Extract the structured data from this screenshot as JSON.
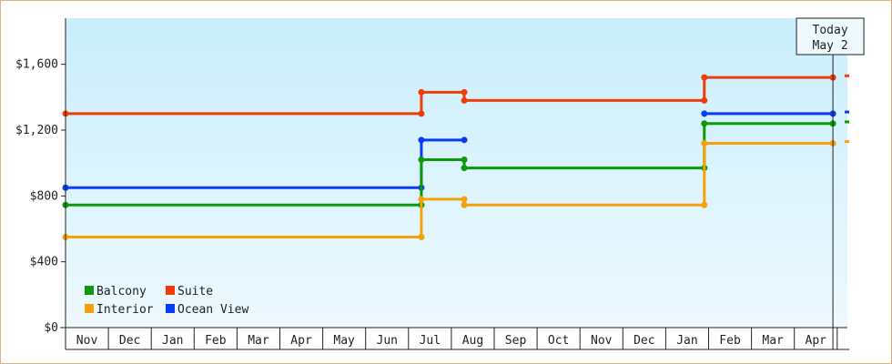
{
  "chart_data": {
    "type": "line",
    "step": true,
    "months": [
      "Nov",
      "Dec",
      "Jan",
      "Feb",
      "Mar",
      "Apr",
      "May",
      "Jun",
      "Jul",
      "Aug",
      "Sep",
      "Oct",
      "Nov",
      "Dec",
      "Jan",
      "Feb",
      "Mar",
      "Apr"
    ],
    "y_ticks": [
      "$0",
      "$400",
      "$800",
      "$1,200",
      "$1,600"
    ],
    "y_tick_values": [
      0,
      400,
      800,
      1200,
      1600
    ],
    "ylim": [
      0,
      1880
    ],
    "xlim": [
      0,
      18.3
    ],
    "grid": false,
    "background": [
      "#c9eefc",
      "#eef9fe"
    ],
    "today": {
      "line1": "Today",
      "line2": "May 2",
      "x": 17.9
    },
    "legend": {
      "placement": "bottom-left",
      "items": [
        {
          "label": "Balcony",
          "color": "#0a9a0a"
        },
        {
          "label": "Suite",
          "color": "#f03c0a"
        },
        {
          "label": "Interior",
          "color": "#f5a20a"
        },
        {
          "label": "Ocean View",
          "color": "#0a3cf5"
        }
      ]
    },
    "series": [
      {
        "name": "Suite",
        "color": "#f03c0a",
        "segments": [
          [
            [
              0,
              1300
            ],
            [
              8.3,
              1300
            ]
          ],
          [
            [
              8.3,
              1430
            ],
            [
              9.3,
              1430
            ]
          ],
          [
            [
              9.3,
              1380
            ],
            [
              14.9,
              1380
            ]
          ],
          [
            [
              14.9,
              1520
            ],
            [
              17.9,
              1520
            ]
          ]
        ],
        "trail": 1530
      },
      {
        "name": "Ocean View",
        "color": "#0a3cf5",
        "segments": [
          [
            [
              0,
              850
            ],
            [
              8.3,
              850
            ]
          ],
          [
            [
              8.3,
              1140
            ],
            [
              9.3,
              1140
            ]
          ],
          [
            [
              14.9,
              1300
            ],
            [
              17.9,
              1300
            ]
          ]
        ],
        "trail": 1310
      },
      {
        "name": "Balcony",
        "color": "#0a9a0a",
        "segments": [
          [
            [
              0,
              745
            ],
            [
              8.3,
              745
            ]
          ],
          [
            [
              8.3,
              1020
            ],
            [
              9.3,
              1020
            ]
          ],
          [
            [
              9.3,
              970
            ],
            [
              14.9,
              970
            ]
          ],
          [
            [
              14.9,
              1240
            ],
            [
              17.9,
              1240
            ]
          ]
        ],
        "trail": 1250
      },
      {
        "name": "Interior",
        "color": "#f5a20a",
        "segments": [
          [
            [
              0,
              550
            ],
            [
              8.3,
              550
            ]
          ],
          [
            [
              8.3,
              780
            ],
            [
              9.3,
              780
            ]
          ],
          [
            [
              9.3,
              745
            ],
            [
              14.9,
              745
            ]
          ],
          [
            [
              14.9,
              1120
            ],
            [
              17.9,
              1120
            ]
          ]
        ],
        "trail": 1130
      }
    ]
  }
}
